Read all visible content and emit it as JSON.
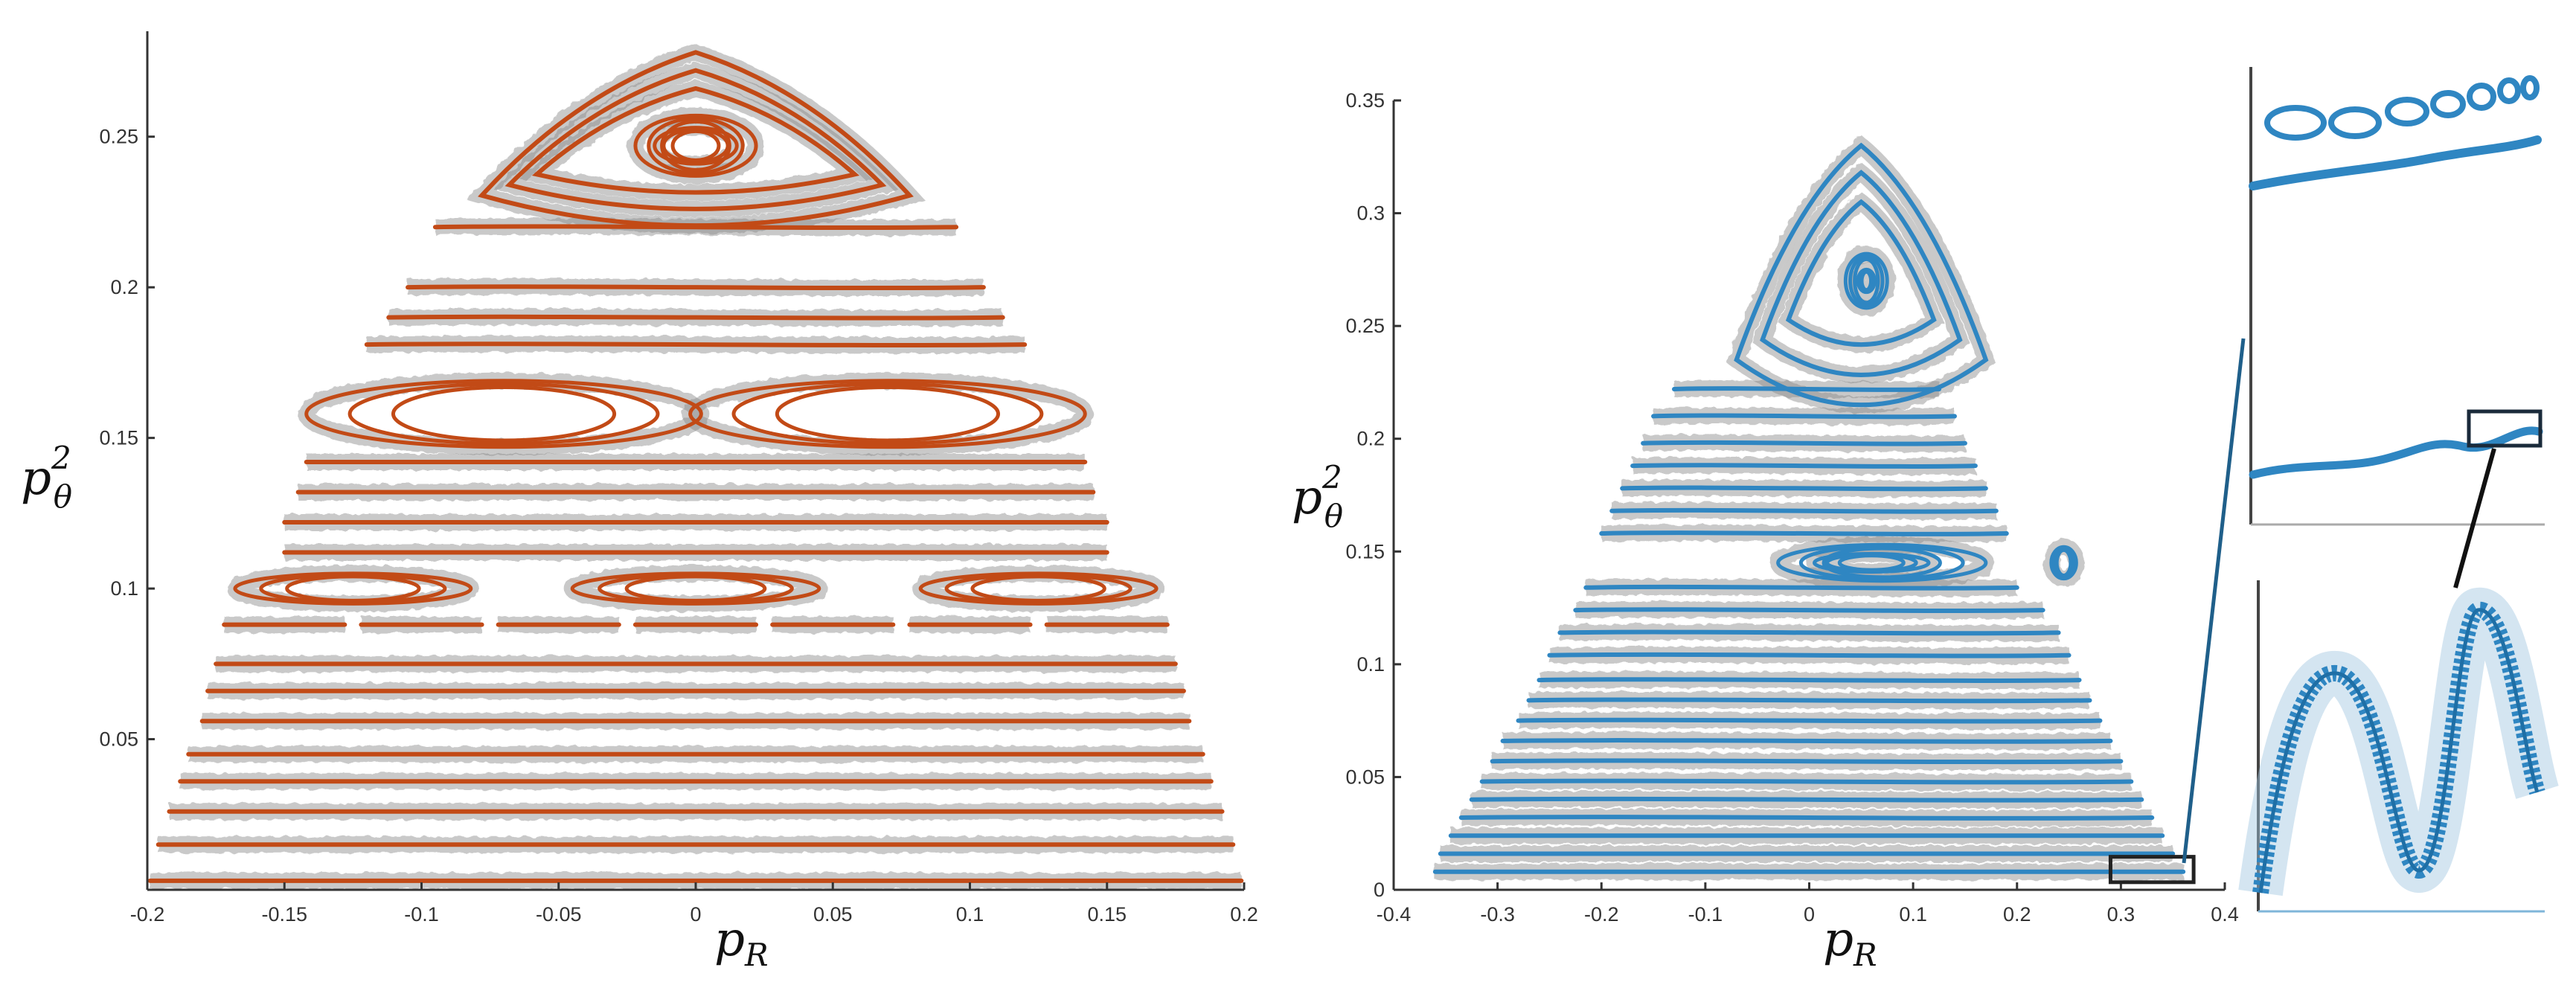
{
  "colors": {
    "left_curves": "#c24a16",
    "right_curves": "#2f86c2",
    "axis": "#333333",
    "halo": "#888888"
  },
  "chart_data": [
    {
      "type": "scatter",
      "title": "",
      "xlabel_base": "p",
      "xlabel_sub": "R",
      "ylabel_base": "p",
      "ylabel_sup": "2",
      "ylabel_sub": "θ",
      "xlim": [
        -0.2,
        0.2
      ],
      "ylim": [
        0,
        0.285
      ],
      "xticks": [
        -0.2,
        -0.15,
        -0.1,
        -0.05,
        0,
        0.05,
        0.1,
        0.15,
        0.2
      ],
      "xtick_labels": [
        "-0.2",
        "-0.15",
        "-0.1",
        "-0.05",
        "0",
        "0.05",
        "0.1",
        "0.15",
        "0.2"
      ],
      "yticks": [
        0.05,
        0.1,
        0.15,
        0.2,
        0.25
      ],
      "ytick_labels": [
        "0.05",
        "0.1",
        "0.15",
        "0.2",
        "0.25"
      ],
      "grid": false,
      "series": [
        {
          "kind": "hline",
          "y": 0.003,
          "xmin": -0.199,
          "xmax": 0.199
        },
        {
          "kind": "hline",
          "y": 0.015,
          "xmin": -0.196,
          "xmax": 0.196
        },
        {
          "kind": "hline",
          "y": 0.026,
          "xmin": -0.192,
          "xmax": 0.192
        },
        {
          "kind": "hline",
          "y": 0.036,
          "xmin": -0.188,
          "xmax": 0.188
        },
        {
          "kind": "hline",
          "y": 0.045,
          "xmin": -0.185,
          "xmax": 0.185
        },
        {
          "kind": "hline",
          "y": 0.056,
          "xmin": -0.18,
          "xmax": 0.18
        },
        {
          "kind": "hline",
          "y": 0.066,
          "xmin": -0.178,
          "xmax": 0.178
        },
        {
          "kind": "hline",
          "y": 0.075,
          "xmin": -0.175,
          "xmax": 0.175
        },
        {
          "kind": "dashes",
          "y": 0.088,
          "xs": [
            -0.15,
            -0.1,
            -0.05,
            0,
            0.05,
            0.1,
            0.15
          ],
          "w": 0.022
        },
        {
          "kind": "island",
          "cx": -0.125,
          "cy": 0.1,
          "rx": 0.043,
          "ry": 0.005
        },
        {
          "kind": "island",
          "cx": 0,
          "cy": 0.1,
          "rx": 0.045,
          "ry": 0.005
        },
        {
          "kind": "island",
          "cx": 0.125,
          "cy": 0.1,
          "rx": 0.043,
          "ry": 0.005
        },
        {
          "kind": "hline",
          "y": 0.112,
          "xmin": -0.15,
          "xmax": 0.15
        },
        {
          "kind": "hline",
          "y": 0.122,
          "xmin": -0.15,
          "xmax": 0.15
        },
        {
          "kind": "hline",
          "y": 0.132,
          "xmin": -0.145,
          "xmax": 0.145
        },
        {
          "kind": "hline",
          "y": 0.142,
          "xmin": -0.142,
          "xmax": 0.142
        },
        {
          "kind": "island",
          "cx": -0.07,
          "cy": 0.158,
          "rx": 0.072,
          "ry": 0.011
        },
        {
          "kind": "island",
          "cx": 0.07,
          "cy": 0.158,
          "rx": 0.072,
          "ry": 0.011
        },
        {
          "kind": "hline",
          "y": 0.181,
          "xmin": -0.12,
          "xmax": 0.12
        },
        {
          "kind": "hline",
          "y": 0.19,
          "xmin": -0.112,
          "xmax": 0.112
        },
        {
          "kind": "hline",
          "y": 0.2,
          "xmin": -0.105,
          "xmax": 0.105
        },
        {
          "kind": "hline",
          "y": 0.22,
          "xmin": -0.095,
          "xmax": 0.095
        },
        {
          "kind": "triangle",
          "cx": 0,
          "top": 0.278,
          "bottom": 0.228,
          "half": 0.078
        },
        {
          "kind": "triangle",
          "cx": 0,
          "top": 0.272,
          "bottom": 0.232,
          "half": 0.068
        },
        {
          "kind": "triangle",
          "cx": 0,
          "top": 0.266,
          "bottom": 0.236,
          "half": 0.058
        },
        {
          "kind": "island",
          "cx": 0,
          "cy": 0.247,
          "rx": 0.022,
          "ry": 0.01
        },
        {
          "kind": "island",
          "cx": 0,
          "cy": 0.247,
          "rx": 0.015,
          "ry": 0.006
        }
      ]
    },
    {
      "type": "scatter",
      "title": "",
      "xlabel_base": "p",
      "xlabel_sub": "R",
      "ylabel_base": "p",
      "ylabel_sup": "2",
      "ylabel_sub": "θ",
      "xlim": [
        -0.4,
        0.4
      ],
      "ylim": [
        0,
        0.35
      ],
      "xticks": [
        -0.4,
        -0.3,
        -0.2,
        -0.1,
        0,
        0.1,
        0.2,
        0.3,
        0.4
      ],
      "xtick_labels": [
        "-0.4",
        "-0.3",
        "-0.2",
        "-0.1",
        "0",
        "0.1",
        "0.2",
        "0.3",
        "0.4"
      ],
      "yticks": [
        0,
        0.05,
        0.1,
        0.15,
        0.2,
        0.25,
        0.3,
        0.35
      ],
      "ytick_labels": [
        "0",
        "0.05",
        "0.1",
        "0.15",
        "0.2",
        "0.25",
        "0.3",
        "0.35"
      ],
      "grid": false,
      "series": [
        {
          "kind": "hline",
          "y": 0.008,
          "xmin": -0.36,
          "xmax": 0.36
        },
        {
          "kind": "hline",
          "y": 0.016,
          "xmin": -0.355,
          "xmax": 0.35
        },
        {
          "kind": "hline",
          "y": 0.024,
          "xmin": -0.345,
          "xmax": 0.34
        },
        {
          "kind": "hline",
          "y": 0.032,
          "xmin": -0.335,
          "xmax": 0.33
        },
        {
          "kind": "hline",
          "y": 0.04,
          "xmin": -0.325,
          "xmax": 0.32
        },
        {
          "kind": "hline",
          "y": 0.048,
          "xmin": -0.315,
          "xmax": 0.31
        },
        {
          "kind": "hline",
          "y": 0.057,
          "xmin": -0.305,
          "xmax": 0.3
        },
        {
          "kind": "hline",
          "y": 0.066,
          "xmin": -0.295,
          "xmax": 0.29
        },
        {
          "kind": "hline",
          "y": 0.075,
          "xmin": -0.28,
          "xmax": 0.28
        },
        {
          "kind": "hline",
          "y": 0.084,
          "xmin": -0.27,
          "xmax": 0.27
        },
        {
          "kind": "hline",
          "y": 0.093,
          "xmin": -0.26,
          "xmax": 0.26
        },
        {
          "kind": "hline",
          "y": 0.104,
          "xmin": -0.25,
          "xmax": 0.25
        },
        {
          "kind": "hline",
          "y": 0.114,
          "xmin": -0.24,
          "xmax": 0.24
        },
        {
          "kind": "hline",
          "y": 0.124,
          "xmin": -0.225,
          "xmax": 0.225
        },
        {
          "kind": "hline",
          "y": 0.134,
          "xmin": -0.215,
          "xmax": 0.2
        },
        {
          "kind": "island",
          "cx": 0.07,
          "cy": 0.145,
          "rx": 0.1,
          "ry": 0.008
        },
        {
          "kind": "island",
          "cx": 0.06,
          "cy": 0.145,
          "rx": 0.055,
          "ry": 0.004
        },
        {
          "kind": "island",
          "cx": 0.245,
          "cy": 0.145,
          "rx": 0.012,
          "ry": 0.007
        },
        {
          "kind": "hline",
          "y": 0.158,
          "xmin": -0.2,
          "xmax": 0.19
        },
        {
          "kind": "hline",
          "y": 0.168,
          "xmin": -0.19,
          "xmax": 0.18
        },
        {
          "kind": "hline",
          "y": 0.178,
          "xmin": -0.18,
          "xmax": 0.17
        },
        {
          "kind": "hline",
          "y": 0.188,
          "xmin": -0.17,
          "xmax": 0.16
        },
        {
          "kind": "hline",
          "y": 0.198,
          "xmin": -0.16,
          "xmax": 0.15
        },
        {
          "kind": "hline",
          "y": 0.21,
          "xmin": -0.15,
          "xmax": 0.14
        },
        {
          "kind": "hline",
          "y": 0.222,
          "xmin": -0.13,
          "xmax": 0.125
        },
        {
          "kind": "triangle",
          "cx": 0.05,
          "top": 0.33,
          "bottom": 0.23,
          "half": 0.12
        },
        {
          "kind": "triangle",
          "cx": 0.05,
          "top": 0.318,
          "bottom": 0.24,
          "half": 0.095
        },
        {
          "kind": "triangle",
          "cx": 0.05,
          "top": 0.305,
          "bottom": 0.25,
          "half": 0.07
        },
        {
          "kind": "island",
          "cx": 0.055,
          "cy": 0.27,
          "rx": 0.02,
          "ry": 0.012
        },
        {
          "kind": "island",
          "cx": 0.055,
          "cy": 0.27,
          "rx": 0.008,
          "ry": 0.005
        }
      ],
      "inset_box": {
        "x": [
          0.29,
          0.37
        ],
        "y": [
          0.006,
          0.012
        ]
      }
    }
  ]
}
